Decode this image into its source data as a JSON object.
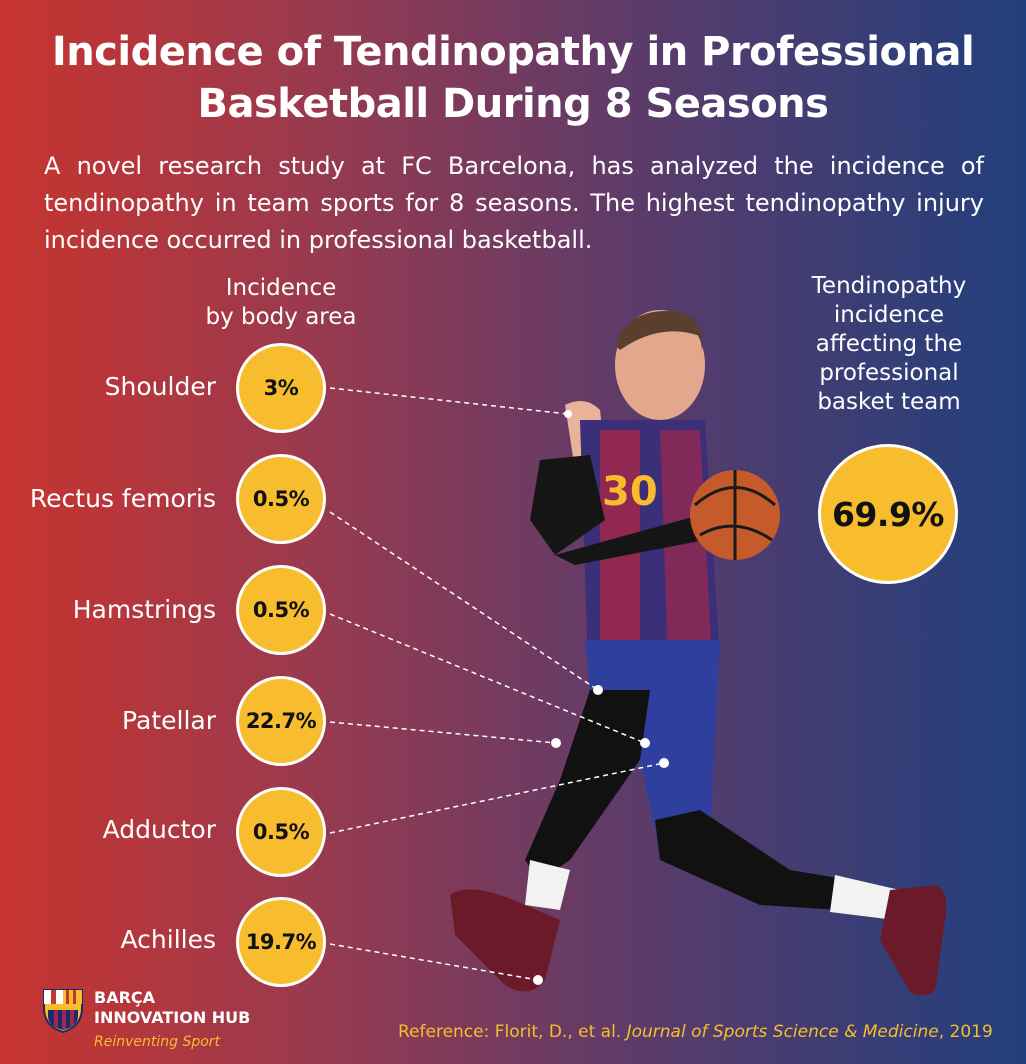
{
  "title_line1": "Incidence of Tendinopathy in Professional",
  "title_line2": "Basketball During 8 Seasons",
  "intro": "A novel research study at FC Barcelona, has analyzed the incidence of tendinopathy in team sports for 8 seasons. The highest tendinopathy injury incidence occurred in professional basketball.",
  "left_heading": {
    "line1": "Incidence",
    "line2": "by body area"
  },
  "right_heading": {
    "line1": "Tendinopathy",
    "line2": "incidence",
    "line3": "affecting the",
    "line4": "professional",
    "line5": "basket team"
  },
  "areas": [
    {
      "label": "Shoulder",
      "value": "3%"
    },
    {
      "label": "Rectus femoris",
      "value": "0.5%"
    },
    {
      "label": "Hamstrings",
      "value": "0.5%"
    },
    {
      "label": "Patellar",
      "value": "22.7%"
    },
    {
      "label": "Adductor",
      "value": "0.5%"
    },
    {
      "label": "Achilles",
      "value": "19.7%"
    }
  ],
  "team_incidence": "69.9%",
  "jersey_number": "30",
  "logo": {
    "line1": "BARÇA",
    "line2": "INNOVATION HUB",
    "tagline": "Reinventing Sport"
  },
  "reference": {
    "prefix": "Reference: Florit, D., et al. ",
    "journal": "Journal of Sports Science & Medicine",
    "suffix": ", 2019"
  },
  "colors": {
    "bubble": "#f7bd2e",
    "left_bg": "#c7342f",
    "right_bg": "#213f7d",
    "reference": "#f7bd2e"
  }
}
